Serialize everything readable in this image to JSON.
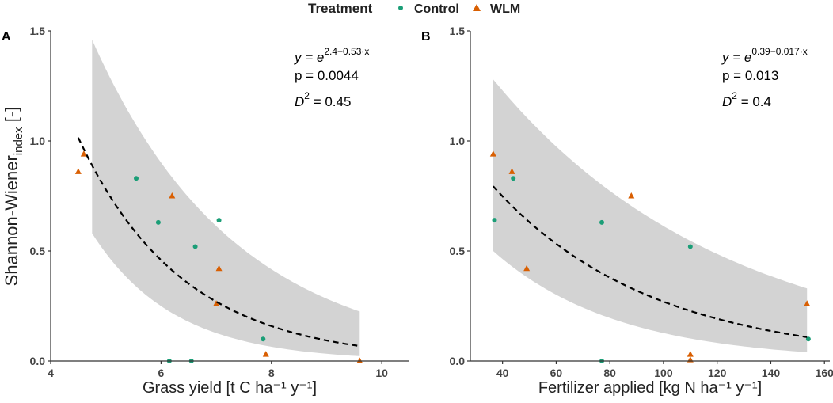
{
  "legend": {
    "title": "Treatment",
    "items": [
      {
        "name": "Control",
        "shape": "circle",
        "color": "#1b9e77"
      },
      {
        "name": "WLM",
        "shape": "triangle",
        "color": "#d95f02"
      }
    ]
  },
  "y_axis_title": "Shannon-Wiener",
  "y_axis_title_sub": "index",
  "y_axis_title_unit": " [-]",
  "chart_data": [
    {
      "type": "scatter",
      "panel_label": "A",
      "xlabel": "Grass yield [t C ha⁻¹ y⁻¹]",
      "ylabel": "Shannon-Wiener index [-]",
      "xlim": [
        4,
        10.5
      ],
      "ylim": [
        0,
        1.5
      ],
      "x_ticks": [
        4,
        6,
        8,
        10
      ],
      "y_ticks": [
        0.0,
        0.5,
        1.0,
        1.5
      ],
      "y_tick_labels": [
        "0.0",
        "0.5",
        "1.0",
        "1.5"
      ],
      "series": [
        {
          "name": "Control",
          "points": [
            [
              5.55,
              0.83
            ],
            [
              5.95,
              0.63
            ],
            [
              6.15,
              0.0
            ],
            [
              6.55,
              0.0
            ],
            [
              6.62,
              0.52
            ],
            [
              7.05,
              0.64
            ],
            [
              7.85,
              0.1
            ]
          ]
        },
        {
          "name": "WLM",
          "points": [
            [
              4.5,
              0.86
            ],
            [
              4.6,
              0.94
            ],
            [
              6.2,
              0.75
            ],
            [
              7.0,
              0.26
            ],
            [
              7.05,
              0.42
            ],
            [
              7.9,
              0.03
            ],
            [
              9.6,
              0.0
            ]
          ]
        }
      ],
      "fit": {
        "a": 2.4,
        "b": 0.53,
        "x_range": [
          4.5,
          9.6
        ]
      },
      "ci": {
        "x_range": [
          4.75,
          9.6
        ],
        "lower": [
          0.58,
          0.022
        ],
        "upper": [
          1.46,
          0.225
        ]
      },
      "annotation": {
        "eq_prefix": "y = e",
        "eq_exponent": "2.4−0.53·x",
        "p_text": "p = 0.0044",
        "d2_text": "D",
        "d2_sup": "2",
        "d2_value": " = 0.45"
      }
    },
    {
      "type": "scatter",
      "panel_label": "B",
      "xlabel": "Fertilizer applied [kg N ha⁻¹ y⁻¹]",
      "ylabel": "Shannon-Wiener index [-]",
      "xlim": [
        28,
        162
      ],
      "ylim": [
        0,
        1.5
      ],
      "x_ticks": [
        40,
        60,
        80,
        100,
        120,
        140,
        160
      ],
      "y_ticks": [
        0.0,
        0.5,
        1.0,
        1.5
      ],
      "y_tick_labels": [
        "0.0",
        "0.5",
        "1.0",
        "1.5"
      ],
      "series": [
        {
          "name": "Control",
          "points": [
            [
              37,
              0.64
            ],
            [
              44,
              0.83
            ],
            [
              77,
              0.63
            ],
            [
              77,
              0.0
            ],
            [
              110,
              0.52
            ],
            [
              154,
              0.1
            ]
          ]
        },
        {
          "name": "WLM",
          "points": [
            [
              36.5,
              0.94
            ],
            [
              43.5,
              0.86
            ],
            [
              49,
              0.42
            ],
            [
              88,
              0.75
            ],
            [
              110,
              0.03
            ],
            [
              110,
              0.005
            ],
            [
              153.5,
              0.26
            ]
          ]
        }
      ],
      "fit": {
        "a": 0.39,
        "b": 0.017,
        "x_range": [
          36.5,
          153.5
        ]
      },
      "ci": {
        "x_range": [
          36.5,
          153.5
        ],
        "lower": [
          0.5,
          0.04
        ],
        "upper": [
          1.28,
          0.33
        ]
      },
      "annotation": {
        "eq_prefix": "y = e",
        "eq_exponent": "0.39−0.017·x",
        "p_text": "p = 0.013",
        "d2_text": "D",
        "d2_sup": "2",
        "d2_value": " = 0.4"
      }
    }
  ]
}
